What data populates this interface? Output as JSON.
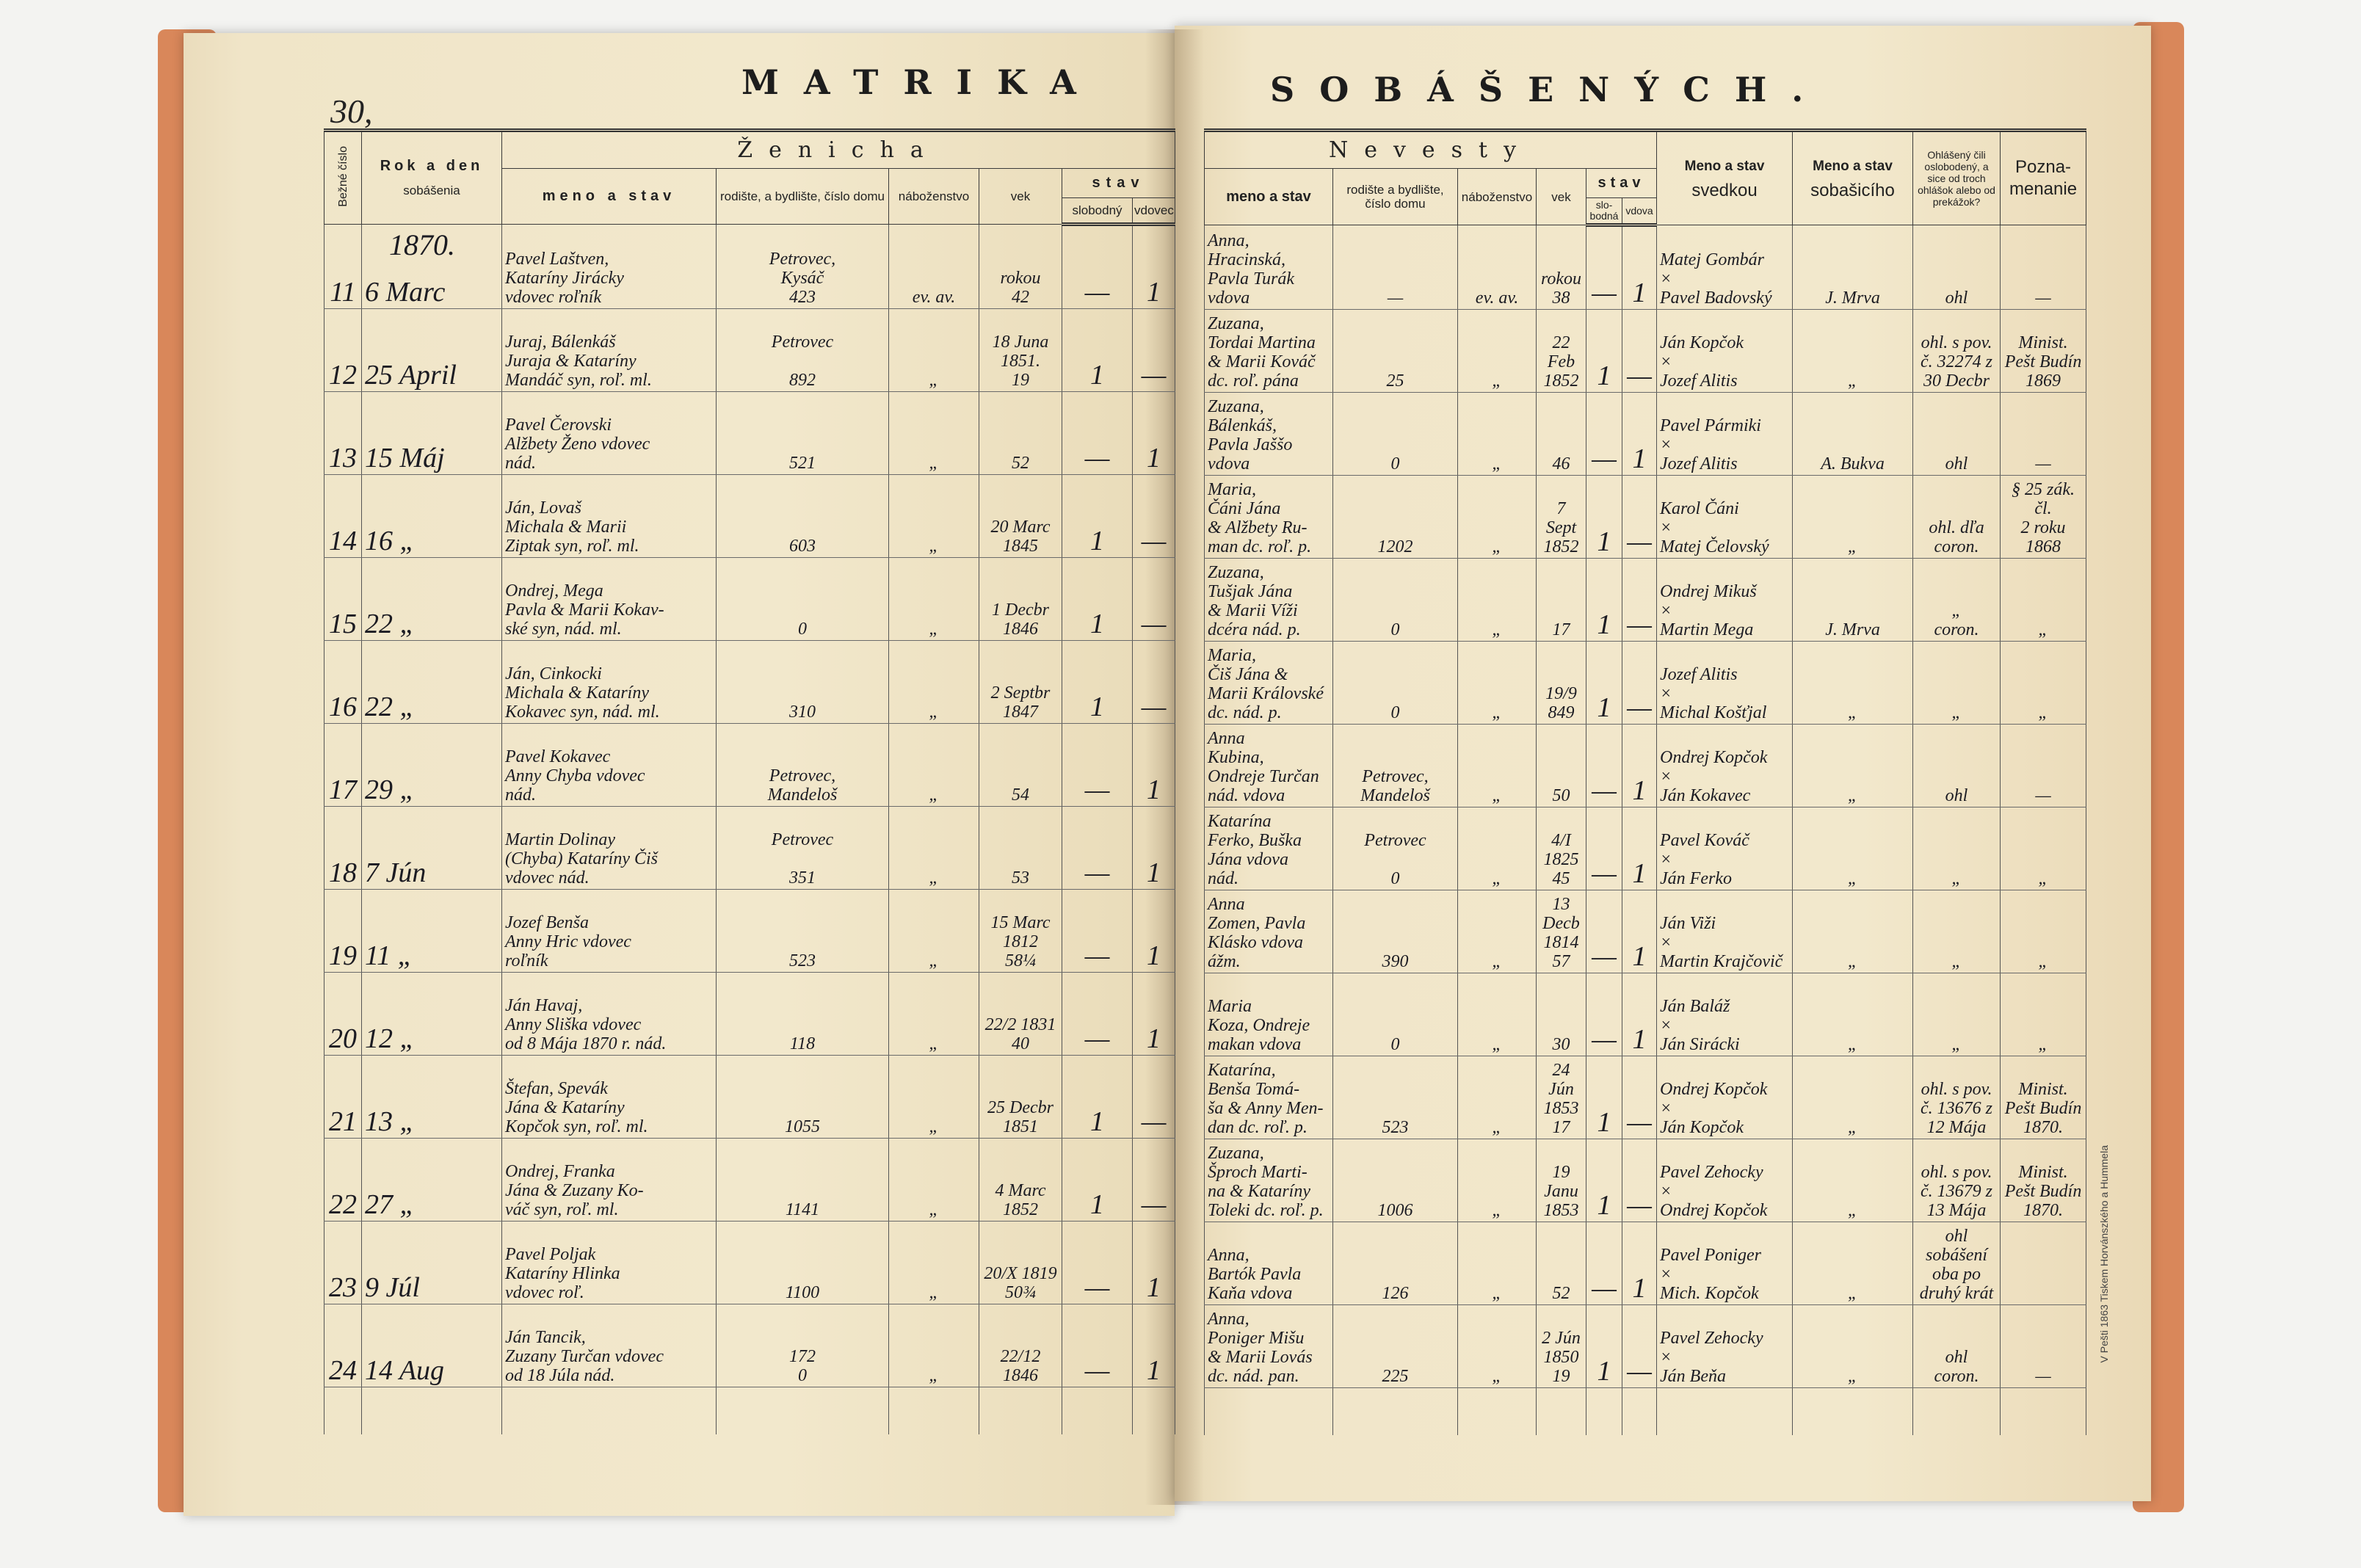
{
  "page_number": "30,",
  "title_left": "MATRIKA",
  "title_right": "SOBÁŠENÝCH.",
  "year": "1870.",
  "printer_note": "V Pešti 1863 Tiskem Horvánszkého a Hummela",
  "headers": {
    "bezne_cislo": "Bežné číslo",
    "rok_a_den": "Rok a den",
    "sobasenia": "sobášenia",
    "zenicha": "Ženicha",
    "meno_a_stav": "meno a stav",
    "rodisko_groom": "rodište, a bydlište, číslo domu",
    "nabozenstvo": "náboženstvo",
    "vek": "vek",
    "stav": "stav",
    "slobodny": "slobodný",
    "vdovec": "vdovec",
    "nevesty": "Nevesty",
    "rodisko_bride": "rodište a bydlište, číslo domu",
    "slobodna": "slo-bodná",
    "vdova": "vdova",
    "meno_a_stav_bold": "Meno a stav",
    "svedkou": "svedkou",
    "sobasiaceho": "sobašicího",
    "ohlaseny": "Ohlášený čili oslobodený, a sice od troch ohlášok alebo od prekážok?",
    "poznamenanie": "Pozna-menanie"
  },
  "rows": [
    {
      "no": "11",
      "date": "6 Marc",
      "groom": "Pavel Laštven,\nKataríny Jirácky\nvdovec roľník",
      "groom_place": "Petrovec,\nKysáč\n423",
      "groom_rel": "ev. av.",
      "groom_age": "rokou\n42",
      "groom_single": "—",
      "groom_widower": "1",
      "bride": "Anna,\nHracinská,\nPavla Turák\nvdova",
      "bride_place": "—",
      "bride_rel": "ev. av.",
      "bride_age": "rokou\n38",
      "bride_single": "—",
      "bride_widow": "1",
      "witnesses": "Matej Gombár\n×\nPavel Badovský",
      "officiant": "J. Mrva",
      "banns": "ohl",
      "note": "—"
    },
    {
      "no": "12",
      "date": "25 April",
      "groom": "Juraj, Bálenkáš\nJuraja & Kataríny\nMandáč syn, roľ. ml.",
      "groom_place": "Petrovec\n\n892",
      "groom_rel": "„",
      "groom_age": "18 Juna\n1851.\n19",
      "groom_single": "1",
      "groom_widower": "—",
      "bride": "Zuzana,\nTordai Martina\n& Marii Kováč\ndc. roľ. pána",
      "bride_place": "25",
      "bride_rel": "„",
      "bride_age": "22 Feb\n1852",
      "bride_single": "1",
      "bride_widow": "—",
      "witnesses": "Ján Kopčok\n×\nJozef Alitis",
      "officiant": "„",
      "banns": "ohl. s pov.\nč. 32274 z\n30 Decbr",
      "note": "Minist.\nPešt Budín\n1869"
    },
    {
      "no": "13",
      "date": "15 Máj",
      "groom": "Pavel Čerovski\nAlžbety Ženo vdovec\nnád.",
      "groom_place": "521",
      "groom_rel": "„",
      "groom_age": "52",
      "groom_single": "—",
      "groom_widower": "1",
      "bride": "Zuzana,\nBálenkáš,\nPavla Jaššo\nvdova",
      "bride_place": "0",
      "bride_rel": "„",
      "bride_age": "46",
      "bride_single": "—",
      "bride_widow": "1",
      "witnesses": "Pavel Pármiki\n×\nJozef Alitis",
      "officiant": "A. Bukva",
      "banns": "ohl",
      "note": "—"
    },
    {
      "no": "14",
      "date": "16 „",
      "groom": "Ján, Lovaš\nMichala & Marii\nZiptak syn, roľ. ml.",
      "groom_place": "603",
      "groom_rel": "„",
      "groom_age": "20 Marc\n1845",
      "groom_single": "1",
      "groom_widower": "—",
      "bride": "Maria,\nČáni Jána\n& Alžbety Ru-\nman dc. roľ. p.",
      "bride_place": "1202",
      "bride_rel": "„",
      "bride_age": "7 Sept\n1852",
      "bride_single": "1",
      "bride_widow": "—",
      "witnesses": "Karol Čáni\n×\nMatej Čelovský",
      "officiant": "„",
      "banns": "ohl. dľa\ncoron.",
      "note": "§ 25 zák. čl.\n2 roku\n1868"
    },
    {
      "no": "15",
      "date": "22 „",
      "groom": "Ondrej, Mega\nPavla & Marii Kokav-\nské syn, nád. ml.",
      "groom_place": "0",
      "groom_rel": "„",
      "groom_age": "1 Decbr\n1846",
      "groom_single": "1",
      "groom_widower": "—",
      "bride": "Zuzana,\nTušjak Jána\n& Marii Víži\ndcéra nád. p.",
      "bride_place": "0",
      "bride_rel": "„",
      "bride_age": "17",
      "bride_single": "1",
      "bride_widow": "—",
      "witnesses": "Ondrej Mikuš\n×\nMartin Mega",
      "officiant": "J. Mrva",
      "banns": "„\ncoron.",
      "note": "„"
    },
    {
      "no": "16",
      "date": "22 „",
      "groom": "Ján, Cinkocki\nMichala & Kataríny\nKokavec syn, nád. ml.",
      "groom_place": "310",
      "groom_rel": "„",
      "groom_age": "2 Septbr\n1847",
      "groom_single": "1",
      "groom_widower": "—",
      "bride": "Maria,\nČiš Jána &\nMarii Královské\ndc. nád. p.",
      "bride_place": "0",
      "bride_rel": "„",
      "bride_age": "19/9\n849",
      "bride_single": "1",
      "bride_widow": "—",
      "witnesses": "Jozef Alitis\n×\nMichal Košťjal",
      "officiant": "„",
      "banns": "„",
      "note": "„"
    },
    {
      "no": "17",
      "date": "29 „",
      "groom": "Pavel Kokavec\nAnny Chyba vdovec\nnád.",
      "groom_place": "Petrovec,\nMandeloš",
      "groom_rel": "„",
      "groom_age": "54",
      "groom_single": "—",
      "groom_widower": "1",
      "bride": "Anna\nKubina,\nOndreje Turčan\nnád. vdova",
      "bride_place": "Petrovec,\nMandeloš",
      "bride_rel": "„",
      "bride_age": "50",
      "bride_single": "—",
      "bride_widow": "1",
      "witnesses": "Ondrej Kopčok\n×\nJán Kokavec",
      "officiant": "„",
      "banns": "ohl",
      "note": "—"
    },
    {
      "no": "18",
      "date": "7 Jún",
      "groom": "Martin Dolinay\n(Chyba) Kataríny Čiš\nvdovec nád.",
      "groom_place": "Petrovec\n\n351",
      "groom_rel": "„",
      "groom_age": "53",
      "groom_single": "—",
      "groom_widower": "1",
      "bride": "Katarína\nFerko, Buška\nJána vdova\nnád.",
      "bride_place": "Petrovec\n\n0",
      "bride_rel": "„",
      "bride_age": "4/I 1825\n45",
      "bride_single": "—",
      "bride_widow": "1",
      "witnesses": "Pavel Kováč\n×\nJán Ferko",
      "officiant": "„",
      "banns": "„",
      "note": "„"
    },
    {
      "no": "19",
      "date": "11 „",
      "groom": "Jozef Benša\nAnny Hric vdovec\nroľník",
      "groom_place": "523",
      "groom_rel": "„",
      "groom_age": "15 Marc\n1812\n58¼",
      "groom_single": "—",
      "groom_widower": "1",
      "bride": "Anna\nZomen, Pavla\nKlásko vdova\nážm.",
      "bride_place": "390",
      "bride_rel": "„",
      "bride_age": "13 Decb\n1814\n57",
      "bride_single": "—",
      "bride_widow": "1",
      "witnesses": "Ján Viži\n×\nMartin Krajčovič",
      "officiant": "„",
      "banns": "„",
      "note": "„"
    },
    {
      "no": "20",
      "date": "12 „",
      "groom": "Ján Havaj,\nAnny Sliška vdovec\nod 8 Mája 1870 r. nád.",
      "groom_place": "118",
      "groom_rel": "„",
      "groom_age": "22/2 1831\n40",
      "groom_single": "—",
      "groom_widower": "1",
      "bride": "Maria\nKoza, Ondreje\nmakan vdova",
      "bride_place": "0",
      "bride_rel": "„",
      "bride_age": "30",
      "bride_single": "—",
      "bride_widow": "1",
      "witnesses": "Ján Baláž\n×\nJán Sirácki",
      "officiant": "„",
      "banns": "„",
      "note": "„"
    },
    {
      "no": "21",
      "date": "13 „",
      "groom": "Štefan, Spevák\nJána & Kataríny\nKopčok syn, roľ. ml.",
      "groom_place": "1055",
      "groom_rel": "„",
      "groom_age": "25 Decbr\n1851",
      "groom_single": "1",
      "groom_widower": "—",
      "bride": "Katarína,\nBenša Tomá-\nša & Anny Men-\ndan dc. roľ. p.",
      "bride_place": "523",
      "bride_rel": "„",
      "bride_age": "24 Jún\n1853\n17",
      "bride_single": "1",
      "bride_widow": "—",
      "witnesses": "Ondrej Kopčok\n×\nJán Kopčok",
      "officiant": "„",
      "banns": "ohl. s pov.\nč. 13676 z\n12 Mája",
      "note": "Minist.\nPešt Budín\n1870."
    },
    {
      "no": "22",
      "date": "27 „",
      "groom": "Ondrej, Franka\nJána & Zuzany Ko-\nváč syn, roľ. ml.",
      "groom_place": "1141",
      "groom_rel": "„",
      "groom_age": "4 Marc\n1852",
      "groom_single": "1",
      "groom_widower": "—",
      "bride": "Zuzana,\nŠproch Marti-\nna & Kataríny\nToleki dc. roľ. p.",
      "bride_place": "1006",
      "bride_rel": "„",
      "bride_age": "19 Janu\n1853",
      "bride_single": "1",
      "bride_widow": "—",
      "witnesses": "Pavel Zehocky\n×\nOndrej Kopčok",
      "officiant": "„",
      "banns": "ohl. s pov.\nč. 13679 z\n13 Mája",
      "note": "Minist.\nPešt Budín\n1870."
    },
    {
      "no": "23",
      "date": "9 Júl",
      "groom": "Pavel Poljak\nKataríny Hlinka\nvdovec roľ.",
      "groom_place": "1100",
      "groom_rel": "„",
      "groom_age": "20/X 1819\n50¾",
      "groom_single": "—",
      "groom_widower": "1",
      "bride": "Anna,\nBartók Pavla\nKaňa vdova",
      "bride_place": "126",
      "bride_rel": "„",
      "bride_age": "52",
      "bride_single": "—",
      "bride_widow": "1",
      "witnesses": "Pavel Poniger\n×\nMich. Kopčok",
      "officiant": "„",
      "banns": "ohl\nsobášení\noba po druhý krát",
      "note": ""
    },
    {
      "no": "24",
      "date": "14 Aug",
      "groom": "Ján Tancik,\nZuzany Turčan vdovec\nod 18 Júla nád.",
      "groom_place": "172\n0",
      "groom_rel": "„",
      "groom_age": "22/12\n1846",
      "groom_single": "—",
      "groom_widower": "1",
      "bride": "Anna,\nPoniger Mišu\n& Marii Lovás\ndc. nád. pan.",
      "bride_place": "225",
      "bride_rel": "„",
      "bride_age": "2 Jún\n1850\n19",
      "bride_single": "1",
      "bride_widow": "—",
      "witnesses": "Pavel Zehocky\n×\nJán Beňa",
      "officiant": "„",
      "banns": "ohl\ncoron.",
      "note": "—"
    }
  ],
  "colors": {
    "paper": "#f2e8cc",
    "cover": "#d9875a",
    "ink": "#1b1b22",
    "print": "#222222"
  }
}
